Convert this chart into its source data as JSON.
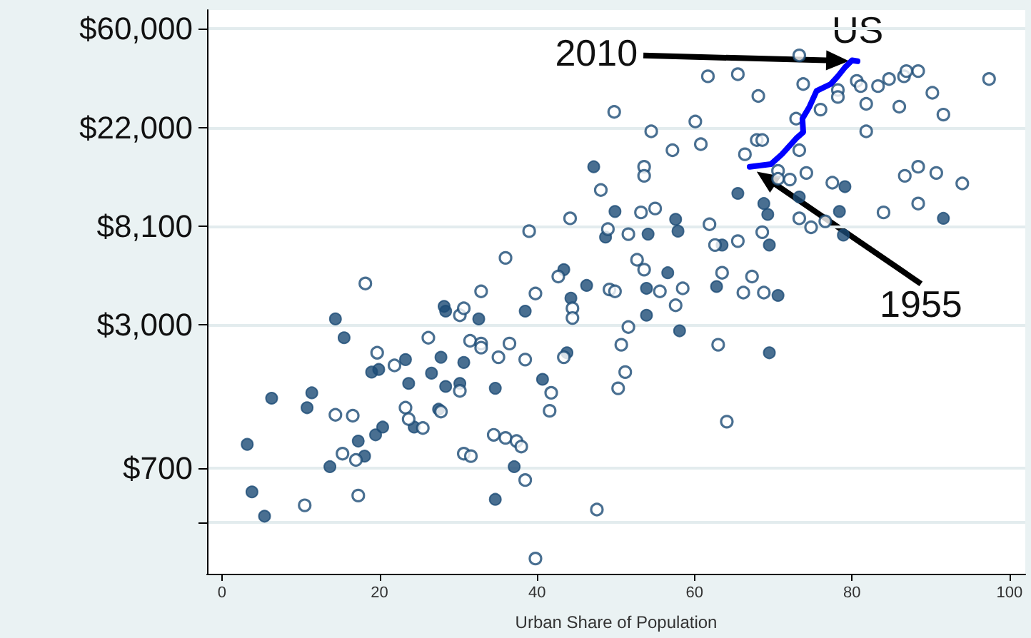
{
  "chart_data": {
    "type": "scatter",
    "xlabel": "Urban Share of Population",
    "xlim": [
      -1.9,
      102
    ],
    "xticks": [
      0,
      20,
      40,
      60,
      80,
      100
    ],
    "log": "y",
    "ylim": [
      240,
      72400
    ],
    "yticks": [
      {
        "value": 403,
        "label": null
      },
      {
        "value": 700,
        "label": "$700"
      },
      {
        "value": 3000,
        "label": "$3,000"
      },
      {
        "value": 8100,
        "label": "$8,100"
      },
      {
        "value": 22000,
        "label": "$22,000"
      },
      {
        "value": 60000,
        "label": "$60,000"
      }
    ],
    "grid": "y",
    "marker": "circle",
    "annotations": [
      "US",
      "2010",
      "1955"
    ],
    "series": [
      {
        "color": "#1b4b75",
        "x": [
          3.2,
          3.8,
          5.4,
          6.3,
          10.8,
          11.4,
          14.4,
          15.5,
          13.7,
          17.3,
          18.1,
          19.5,
          20.4,
          19.0,
          19.9,
          23.3,
          23.7,
          24.4,
          26.6,
          27.8,
          28.2,
          28.4,
          28.4,
          27.5,
          30.2,
          30.7,
          32.6,
          34.7,
          38.5,
          37.1,
          34.7,
          40.7,
          43.8,
          44.3,
          46.3,
          47.2,
          49.9,
          48.7,
          43.4,
          65.5,
          68.8,
          69.3,
          73.3,
          79.1,
          78.4,
          78.9,
          91.6,
          54.1,
          57.6,
          57.9,
          63.5,
          69.5,
          56.6,
          53.9,
          62.8,
          70.6,
          53.9,
          58.1,
          69.5
        ],
        "values": [
          890,
          550,
          430,
          1420,
          1290,
          1500,
          3170,
          2620,
          710,
          920,
          790,
          980,
          1060,
          1850,
          1900,
          2100,
          1650,
          1060,
          1830,
          2150,
          3600,
          3430,
          1600,
          1270,
          1650,
          2040,
          3170,
          1570,
          3430,
          710,
          510,
          1720,
          2250,
          3910,
          4450,
          14800,
          9410,
          7260,
          5220,
          11300,
          10200,
          9130,
          10900,
          12100,
          9410,
          7410,
          8780,
          7480,
          8690,
          7710,
          6700,
          6700,
          5060,
          4320,
          4400,
          4020,
          3290,
          2810,
          2250
        ]
      },
      {
        "color": "#1b4b75",
        "x": [
          49.8,
          48.1,
          49.0,
          44.2,
          39.0,
          36.0,
          42.7,
          32.9,
          39.8,
          18.2,
          49.2,
          49.9,
          51.6,
          73.3,
          61.7,
          65.5,
          68.1,
          73.8,
          78.2,
          78.2,
          76.0,
          72.9,
          80.6,
          81.1,
          83.3,
          84.7,
          86.6,
          88.4,
          86.9,
          90.2,
          86.0,
          81.8,
          91.6,
          97.4,
          81.8,
          54.5,
          60.1,
          60.8,
          57.2,
          67.9,
          68.6,
          66.4,
          73.3,
          53.6,
          53.6,
          70.6,
          70.6,
          72.1,
          74.2,
          77.5,
          86.7,
          88.4,
          90.7,
          94.0,
          88.4,
          84.0,
          55.0,
          53.2,
          61.9,
          73.3,
          74.8,
          76.6,
          68.6,
          65.5,
          62.6,
          52.7,
          53.6,
          63.5,
          67.3,
          58.5,
          55.6,
          66.2,
          68.8,
          57.6,
          51.6,
          50.7,
          51.2,
          50.3,
          63.0,
          64.1,
          10.5,
          14.4,
          16.6,
          15.3,
          17.0,
          17.3,
          19.7,
          21.9,
          23.3,
          23.7,
          25.5,
          26.2,
          27.8,
          30.2,
          30.7,
          31.5,
          32.9,
          32.9,
          35.1,
          36.5,
          38.5,
          30.2,
          30.7,
          31.6,
          34.5,
          36.0,
          37.4,
          38.0,
          38.5,
          39.8,
          41.6,
          41.8,
          43.4,
          44.5,
          44.5,
          47.6
        ],
        "values": [
          25800,
          11700,
          7870,
          8780,
          7710,
          5880,
          4870,
          4190,
          4100,
          4540,
          4270,
          4190,
          7480,
          45700,
          37000,
          37800,
          30300,
          34200,
          32200,
          30000,
          26400,
          24100,
          35300,
          33500,
          33500,
          36000,
          37000,
          39000,
          39000,
          31300,
          27200,
          28000,
          25100,
          36000,
          21200,
          21200,
          23400,
          18600,
          17500,
          19400,
          19400,
          16800,
          17500,
          14800,
          13500,
          14200,
          13100,
          13000,
          13900,
          12600,
          13500,
          14800,
          13900,
          12500,
          10200,
          9320,
          9700,
          9320,
          8270,
          8780,
          8020,
          8520,
          7630,
          6970,
          6700,
          5770,
          5220,
          5060,
          4870,
          4320,
          4190,
          4140,
          4140,
          3640,
          2920,
          2440,
          1850,
          1570,
          2440,
          1120,
          480,
          1200,
          1190,
          810,
          760,
          530,
          2250,
          1980,
          1290,
          1150,
          1050,
          2620,
          1240,
          3290,
          3530,
          2540,
          2470,
          2370,
          2150,
          2470,
          2100,
          1530,
          810,
          790,
          980,
          950,
          920,
          870,
          620,
          280,
          1250,
          1500,
          2150,
          3530,
          3200,
          460
        ]
      },
      {
        "type": "line",
        "color": "#0000ff",
        "marker": "none",
        "x": [
          67.0,
          69.7,
          71.1,
          72.9,
          73.8,
          73.7,
          74.6,
          75.5,
          77.3,
          78.2,
          79.1,
          80.0,
          80.7
        ],
        "values": [
          14800,
          15200,
          16800,
          19700,
          21000,
          24100,
          27200,
          31900,
          34200,
          37000,
          40500,
          43500,
          43100
        ]
      }
    ]
  }
}
